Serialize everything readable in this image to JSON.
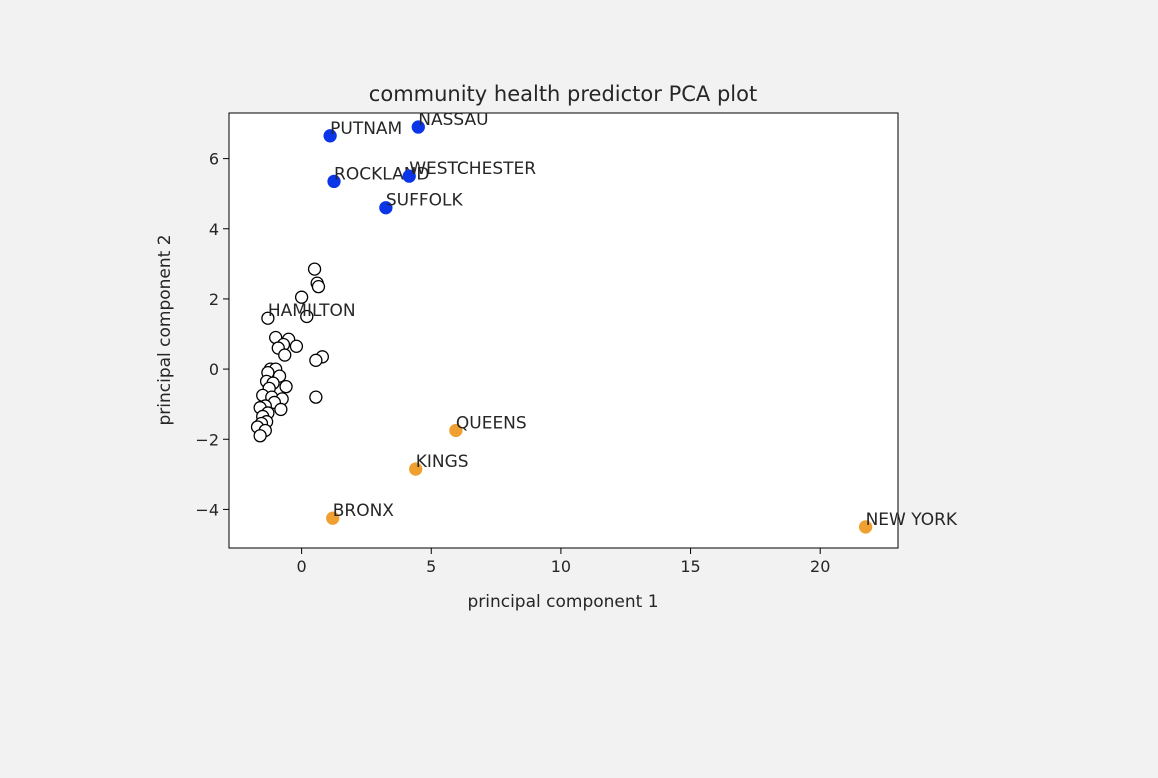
{
  "chart_data": {
    "type": "scatter",
    "title": "community health predictor PCA plot",
    "xlabel": "principal component 1",
    "ylabel": "principal component 2",
    "xlim": [
      -2.8,
      23.0
    ],
    "ylim": [
      -5.1,
      7.3
    ],
    "xticks": [
      0,
      5,
      10,
      15,
      20
    ],
    "yticks": [
      -4,
      -2,
      0,
      2,
      4,
      6
    ],
    "grid": false,
    "legend": "none",
    "colors": {
      "background": "#f2f2f2",
      "plot_area": "#ffffff",
      "blue_cluster": "#0b35e8",
      "orange_cluster": "#f0a030",
      "open_marker_edge": "#000000"
    },
    "labeled_points": [
      {
        "label": "PUTNAM",
        "x": 1.1,
        "y": 6.65,
        "group": "blue"
      },
      {
        "label": "NASSAU",
        "x": 4.5,
        "y": 6.9,
        "group": "blue"
      },
      {
        "label": "ROCKLAND",
        "x": 1.25,
        "y": 5.35,
        "group": "blue"
      },
      {
        "label": "WESTCHESTER",
        "x": 4.15,
        "y": 5.5,
        "group": "blue"
      },
      {
        "label": "SUFFOLK",
        "x": 3.25,
        "y": 4.6,
        "group": "blue"
      },
      {
        "label": "HAMILTON",
        "x": -1.3,
        "y": 1.45,
        "group": "open"
      },
      {
        "label": "QUEENS",
        "x": 5.95,
        "y": -1.75,
        "group": "orange"
      },
      {
        "label": "KINGS",
        "x": 4.4,
        "y": -2.85,
        "group": "orange"
      },
      {
        "label": "BRONX",
        "x": 1.2,
        "y": -4.25,
        "group": "orange"
      },
      {
        "label": "NEW YORK",
        "x": 21.75,
        "y": -4.5,
        "group": "orange"
      }
    ],
    "unlabeled_points": [
      [
        0.5,
        2.85
      ],
      [
        0.6,
        2.45
      ],
      [
        0.65,
        2.35
      ],
      [
        0.0,
        2.05
      ],
      [
        0.2,
        1.5
      ],
      [
        -1.0,
        0.9
      ],
      [
        -0.5,
        0.85
      ],
      [
        -0.7,
        0.7
      ],
      [
        -0.2,
        0.65
      ],
      [
        -0.9,
        0.6
      ],
      [
        -0.65,
        0.4
      ],
      [
        0.8,
        0.35
      ],
      [
        0.55,
        0.25
      ],
      [
        -1.2,
        0.0
      ],
      [
        -1.0,
        0.0
      ],
      [
        -1.3,
        -0.1
      ],
      [
        -0.85,
        -0.2
      ],
      [
        -1.35,
        -0.35
      ],
      [
        -1.1,
        -0.4
      ],
      [
        -0.6,
        -0.5
      ],
      [
        -1.25,
        -0.55
      ],
      [
        -1.5,
        -0.75
      ],
      [
        -1.15,
        -0.8
      ],
      [
        -0.75,
        -0.85
      ],
      [
        0.55,
        -0.8
      ],
      [
        -1.05,
        -0.95
      ],
      [
        -1.4,
        -1.05
      ],
      [
        -1.6,
        -1.1
      ],
      [
        -0.8,
        -1.15
      ],
      [
        -1.3,
        -1.25
      ],
      [
        -1.5,
        -1.35
      ],
      [
        -1.35,
        -1.5
      ],
      [
        -1.55,
        -1.55
      ],
      [
        -1.7,
        -1.65
      ],
      [
        -1.4,
        -1.75
      ],
      [
        -1.6,
        -1.9
      ]
    ]
  }
}
